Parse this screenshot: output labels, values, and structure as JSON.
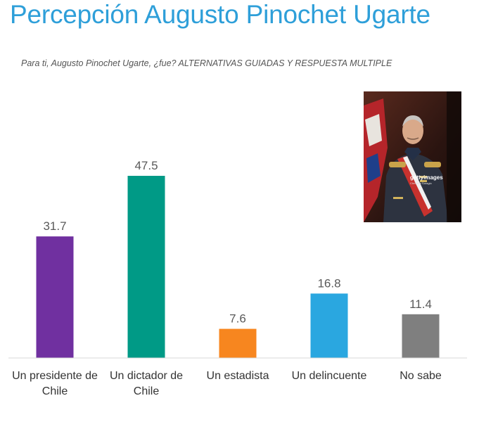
{
  "header": {
    "title": "Percepción Augusto Pinochet Ugarte",
    "subtitle": "Para ti, Augusto Pinochet Ugarte, ¿fue? ALTERNATIVAS GUIADAS Y  RESPUESTA MULTIPLE"
  },
  "photo": {
    "watermark": "gettyimages",
    "watermark_sub": "Christina Saragio"
  },
  "chart_data": {
    "type": "bar",
    "title": "",
    "xlabel": "",
    "ylabel": "",
    "ylim": [
      0,
      50
    ],
    "grid": false,
    "legend": "none",
    "categories": [
      [
        "Un presidente de",
        "Chile"
      ],
      [
        "Un dictador de",
        "Chile"
      ],
      [
        "Un estadista"
      ],
      [
        "Un delincuente"
      ],
      [
        "No sabe"
      ]
    ],
    "values": [
      31.7,
      47.5,
      7.6,
      16.8,
      11.4
    ],
    "data_labels": [
      "31.7",
      "47.5",
      "7.6",
      "16.8",
      "11.4"
    ],
    "colors": [
      "#7030a0",
      "#009a86",
      "#f7861f",
      "#2aa7e0",
      "#7f7f7f"
    ]
  }
}
